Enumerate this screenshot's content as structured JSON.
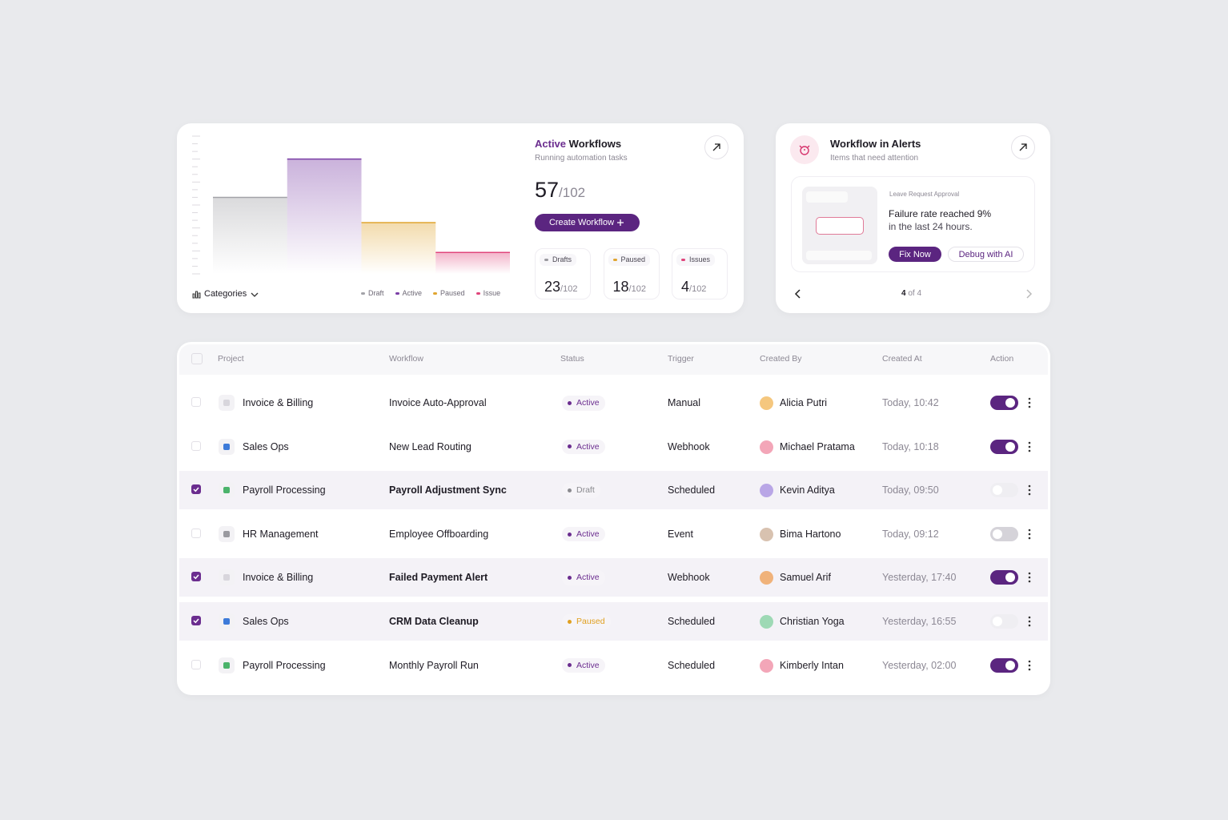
{
  "active_workflows": {
    "title_accent": "Active",
    "title": "Workflows",
    "subtitle": "Running automation tasks",
    "count": 57,
    "total": "/102",
    "button": "Create Workflow",
    "filter": "Categories",
    "chart": {
      "type": "step",
      "ylim": [
        0,
        18
      ],
      "series": [
        {
          "name": "Draft",
          "color": "#a3a3a8",
          "value": 10
        },
        {
          "name": "Active",
          "color": "#7b3fa6",
          "value": 15
        },
        {
          "name": "Paused",
          "color": "#e0a530",
          "value": 6.7
        },
        {
          "name": "Issue",
          "color": "#e0457b",
          "value": 2.8
        }
      ]
    },
    "stats": [
      {
        "label": "Drafts",
        "color": "#9a9a9f",
        "value": 23,
        "total": "/102"
      },
      {
        "label": "Paused",
        "color": "#e0a530",
        "value": 18,
        "total": "/102"
      },
      {
        "label": "Issues",
        "color": "#e0457b",
        "value": 4,
        "total": "/102"
      }
    ]
  },
  "alerts": {
    "title": "Workflow in Alerts",
    "subtitle": "Items that need attention",
    "tag": "Leave Request Approval",
    "message": "Failure rate reached 9%",
    "detail": "in the last 24 hours.",
    "primary_button": "Fix Now",
    "secondary_button": "Debug with AI",
    "page": "4",
    "page_of": "of 4"
  },
  "table": {
    "headers": [
      "Project",
      "Workflow",
      "Status",
      "Trigger",
      "Created By",
      "Created At",
      "Action"
    ],
    "status_colors": {
      "Active": "#6b2d8f",
      "Draft": "#8a8a8f",
      "Paused": "#e0a020"
    },
    "rows": [
      {
        "selected": false,
        "project": "Invoice & Billing",
        "workflow": "Invoice Auto-Approval",
        "status": "Active",
        "trigger": "Manual",
        "created_by": "Alicia Putri",
        "created_at": "Today, 10:42",
        "enabled": true
      },
      {
        "selected": false,
        "project": "Sales Ops",
        "workflow": "New Lead Routing",
        "status": "Active",
        "trigger": "Webhook",
        "created_by": "Michael Pratama",
        "created_at": "Today, 10:18",
        "enabled": true
      },
      {
        "selected": true,
        "project": "Payroll Processing",
        "workflow": "Payroll Adjustment Sync",
        "status": "Draft",
        "trigger": "Scheduled",
        "created_by": "Kevin Aditya",
        "created_at": "Today, 09:50",
        "enabled": false
      },
      {
        "selected": false,
        "project": "HR Management",
        "workflow": "Employee Offboarding",
        "status": "Active",
        "trigger": "Event",
        "created_by": "Bima Hartono",
        "created_at": "Today, 09:12",
        "enabled": false
      },
      {
        "selected": true,
        "project": "Invoice & Billing",
        "workflow": "Failed Payment Alert",
        "status": "Active",
        "trigger": "Webhook",
        "created_by": "Samuel Arif",
        "created_at": "Yesterday, 17:40",
        "enabled": true
      },
      {
        "selected": true,
        "project": "Sales Ops",
        "workflow": "CRM Data Cleanup",
        "status": "Paused",
        "trigger": "Scheduled",
        "created_by": "Christian Yoga",
        "created_at": "Yesterday, 16:55",
        "enabled": false
      },
      {
        "selected": false,
        "project": "Payroll Processing",
        "workflow": "Monthly Payroll Run",
        "status": "Active",
        "trigger": "Scheduled",
        "created_by": "Kimberly Intan",
        "created_at": "Yesterday, 02:00",
        "enabled": true
      }
    ]
  }
}
